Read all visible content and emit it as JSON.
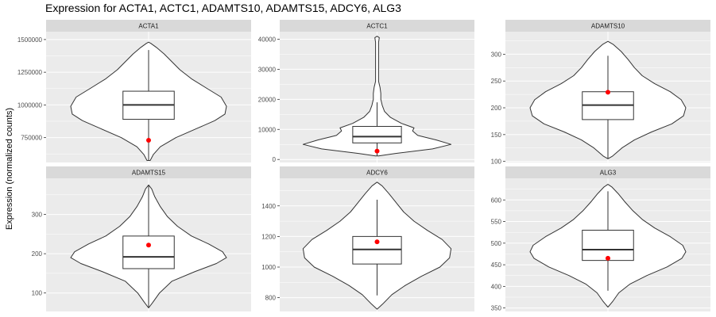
{
  "chart_data": {
    "type": "violin",
    "title": "Expression for ACTA1, ACTC1, ADAMTS10, ADAMTS15, ADCY6, ALG3",
    "xlabel": "",
    "ylabel": "Expression (normalized counts)",
    "grid": true,
    "legend": "none",
    "colors": {
      "panel_bg": "#ebebeb",
      "strip_bg": "#d9d9d9",
      "grid": "#ffffff",
      "violin_fill": "#ffffff",
      "outline": "#333333",
      "highlight_point": "#ff0000"
    },
    "panels": [
      {
        "name": "ACTA1",
        "ylim": [
          560000,
          1560000
        ],
        "ticks": [
          750000,
          1000000,
          1250000,
          1500000
        ],
        "tick_labels": [
          "750000",
          "1000000",
          "1250000",
          "1500000"
        ],
        "violin": [
          [
            575000,
            0.02
          ],
          [
            620000,
            0.06
          ],
          [
            680000,
            0.15
          ],
          [
            750000,
            0.35
          ],
          [
            820000,
            0.62
          ],
          [
            880000,
            0.85
          ],
          [
            930000,
            0.98
          ],
          [
            990000,
            1.0
          ],
          [
            1060000,
            0.93
          ],
          [
            1130000,
            0.74
          ],
          [
            1200000,
            0.55
          ],
          [
            1270000,
            0.4
          ],
          [
            1330000,
            0.3
          ],
          [
            1390000,
            0.2
          ],
          [
            1440000,
            0.1
          ],
          [
            1470000,
            0.03
          ],
          [
            1480000,
            0.0
          ]
        ],
        "box": {
          "min": 575000,
          "q1": 890000,
          "median": 1000000,
          "q3": 1105000,
          "max": 1420000
        },
        "point": 730000
      },
      {
        "name": "ACTC1",
        "ylim": [
          -1000,
          42500
        ],
        "ticks": [
          0,
          10000,
          20000,
          30000,
          40000
        ],
        "tick_labels": [
          "0",
          "10000",
          "20000",
          "30000",
          "40000"
        ],
        "violin": [
          [
            1200,
            0.02
          ],
          [
            2000,
            0.25
          ],
          [
            3500,
            0.75
          ],
          [
            5000,
            1.0
          ],
          [
            6500,
            0.8
          ],
          [
            8000,
            0.55
          ],
          [
            9500,
            0.48
          ],
          [
            10500,
            0.5
          ],
          [
            12000,
            0.33
          ],
          [
            14000,
            0.18
          ],
          [
            16000,
            0.1
          ],
          [
            18000,
            0.07
          ],
          [
            20000,
            0.05
          ],
          [
            22000,
            0.05
          ],
          [
            24000,
            0.04
          ],
          [
            26000,
            0.02
          ],
          [
            30000,
            0.02
          ],
          [
            35000,
            0.02
          ],
          [
            39000,
            0.02
          ],
          [
            40500,
            0.03
          ],
          [
            41000,
            0.0
          ]
        ],
        "box": {
          "min": 1200,
          "q1": 5500,
          "median": 7600,
          "q3": 11000,
          "max": 19000
        },
        "point": 2800
      },
      {
        "name": "ADAMTS10",
        "ylim": [
          98000,
          342000
        ],
        "ticks": [
          100,
          150,
          200,
          250,
          300
        ],
        "tick_labels": [
          "100",
          "150",
          "200",
          "250",
          "300"
        ],
        "violin": [
          [
            105000,
            0.0
          ],
          [
            110000,
            0.06
          ],
          [
            125000,
            0.18
          ],
          [
            140000,
            0.34
          ],
          [
            155000,
            0.56
          ],
          [
            170000,
            0.82
          ],
          [
            185000,
            0.97
          ],
          [
            200000,
            1.0
          ],
          [
            215000,
            0.94
          ],
          [
            230000,
            0.8
          ],
          [
            245000,
            0.6
          ],
          [
            260000,
            0.44
          ],
          [
            275000,
            0.34
          ],
          [
            290000,
            0.26
          ],
          [
            305000,
            0.17
          ],
          [
            318000,
            0.07
          ],
          [
            324000,
            0.0
          ]
        ],
        "box": {
          "min": 105000,
          "q1": 178000,
          "median": 205000,
          "q3": 230000,
          "max": 297000
        },
        "point": 229000
      },
      {
        "name": "ADAMTS15",
        "ylim": [
          53000,
          392000
        ],
        "ticks": [
          100,
          200,
          300
        ],
        "tick_labels": [
          "100",
          "200",
          "300"
        ],
        "violin": [
          [
            62000,
            0.0
          ],
          [
            75000,
            0.05
          ],
          [
            100000,
            0.14
          ],
          [
            130000,
            0.3
          ],
          [
            155000,
            0.6
          ],
          [
            175000,
            0.87
          ],
          [
            190000,
            1.0
          ],
          [
            205000,
            0.95
          ],
          [
            225000,
            0.77
          ],
          [
            245000,
            0.55
          ],
          [
            270000,
            0.37
          ],
          [
            295000,
            0.24
          ],
          [
            320000,
            0.15
          ],
          [
            345000,
            0.08
          ],
          [
            365000,
            0.04
          ],
          [
            375000,
            0.0
          ]
        ],
        "box": {
          "min": 62000,
          "q1": 162000,
          "median": 192000,
          "q3": 245000,
          "max": 375000
        },
        "point": 222000
      },
      {
        "name": "ADCY6",
        "ylim": [
          710000,
          1580000
        ],
        "ticks": [
          800,
          1000,
          1200,
          1400
        ],
        "tick_labels": [
          "800",
          "1000",
          "1200",
          "1400"
        ],
        "violin": [
          [
            725000,
            0.0
          ],
          [
            760000,
            0.08
          ],
          [
            820000,
            0.2
          ],
          [
            880000,
            0.38
          ],
          [
            940000,
            0.6
          ],
          [
            1000000,
            0.85
          ],
          [
            1060000,
            0.98
          ],
          [
            1120000,
            1.0
          ],
          [
            1180000,
            0.88
          ],
          [
            1240000,
            0.68
          ],
          [
            1300000,
            0.5
          ],
          [
            1360000,
            0.36
          ],
          [
            1420000,
            0.26
          ],
          [
            1480000,
            0.16
          ],
          [
            1530000,
            0.07
          ],
          [
            1555000,
            0.0
          ]
        ],
        "box": {
          "min": 815000,
          "q1": 1020000,
          "median": 1115000,
          "q3": 1200000,
          "max": 1440000
        },
        "point": 1165000
      },
      {
        "name": "ALG3",
        "ylim": [
          342000,
          650000
        ],
        "ticks": [
          350,
          400,
          450,
          500,
          550,
          600
        ],
        "tick_labels": [
          "350",
          "400",
          "450",
          "500",
          "550",
          "600"
        ],
        "violin": [
          [
            352000,
            0.0
          ],
          [
            365000,
            0.06
          ],
          [
            385000,
            0.14
          ],
          [
            405000,
            0.28
          ],
          [
            425000,
            0.5
          ],
          [
            445000,
            0.76
          ],
          [
            465000,
            0.95
          ],
          [
            480000,
            1.0
          ],
          [
            495000,
            0.96
          ],
          [
            515000,
            0.8
          ],
          [
            535000,
            0.6
          ],
          [
            555000,
            0.44
          ],
          [
            575000,
            0.32
          ],
          [
            595000,
            0.22
          ],
          [
            615000,
            0.13
          ],
          [
            630000,
            0.05
          ],
          [
            636000,
            0.0
          ]
        ],
        "box": {
          "min": 390000,
          "q1": 460000,
          "median": 485000,
          "q3": 530000,
          "max": 620000
        },
        "point": 465000
      }
    ]
  }
}
